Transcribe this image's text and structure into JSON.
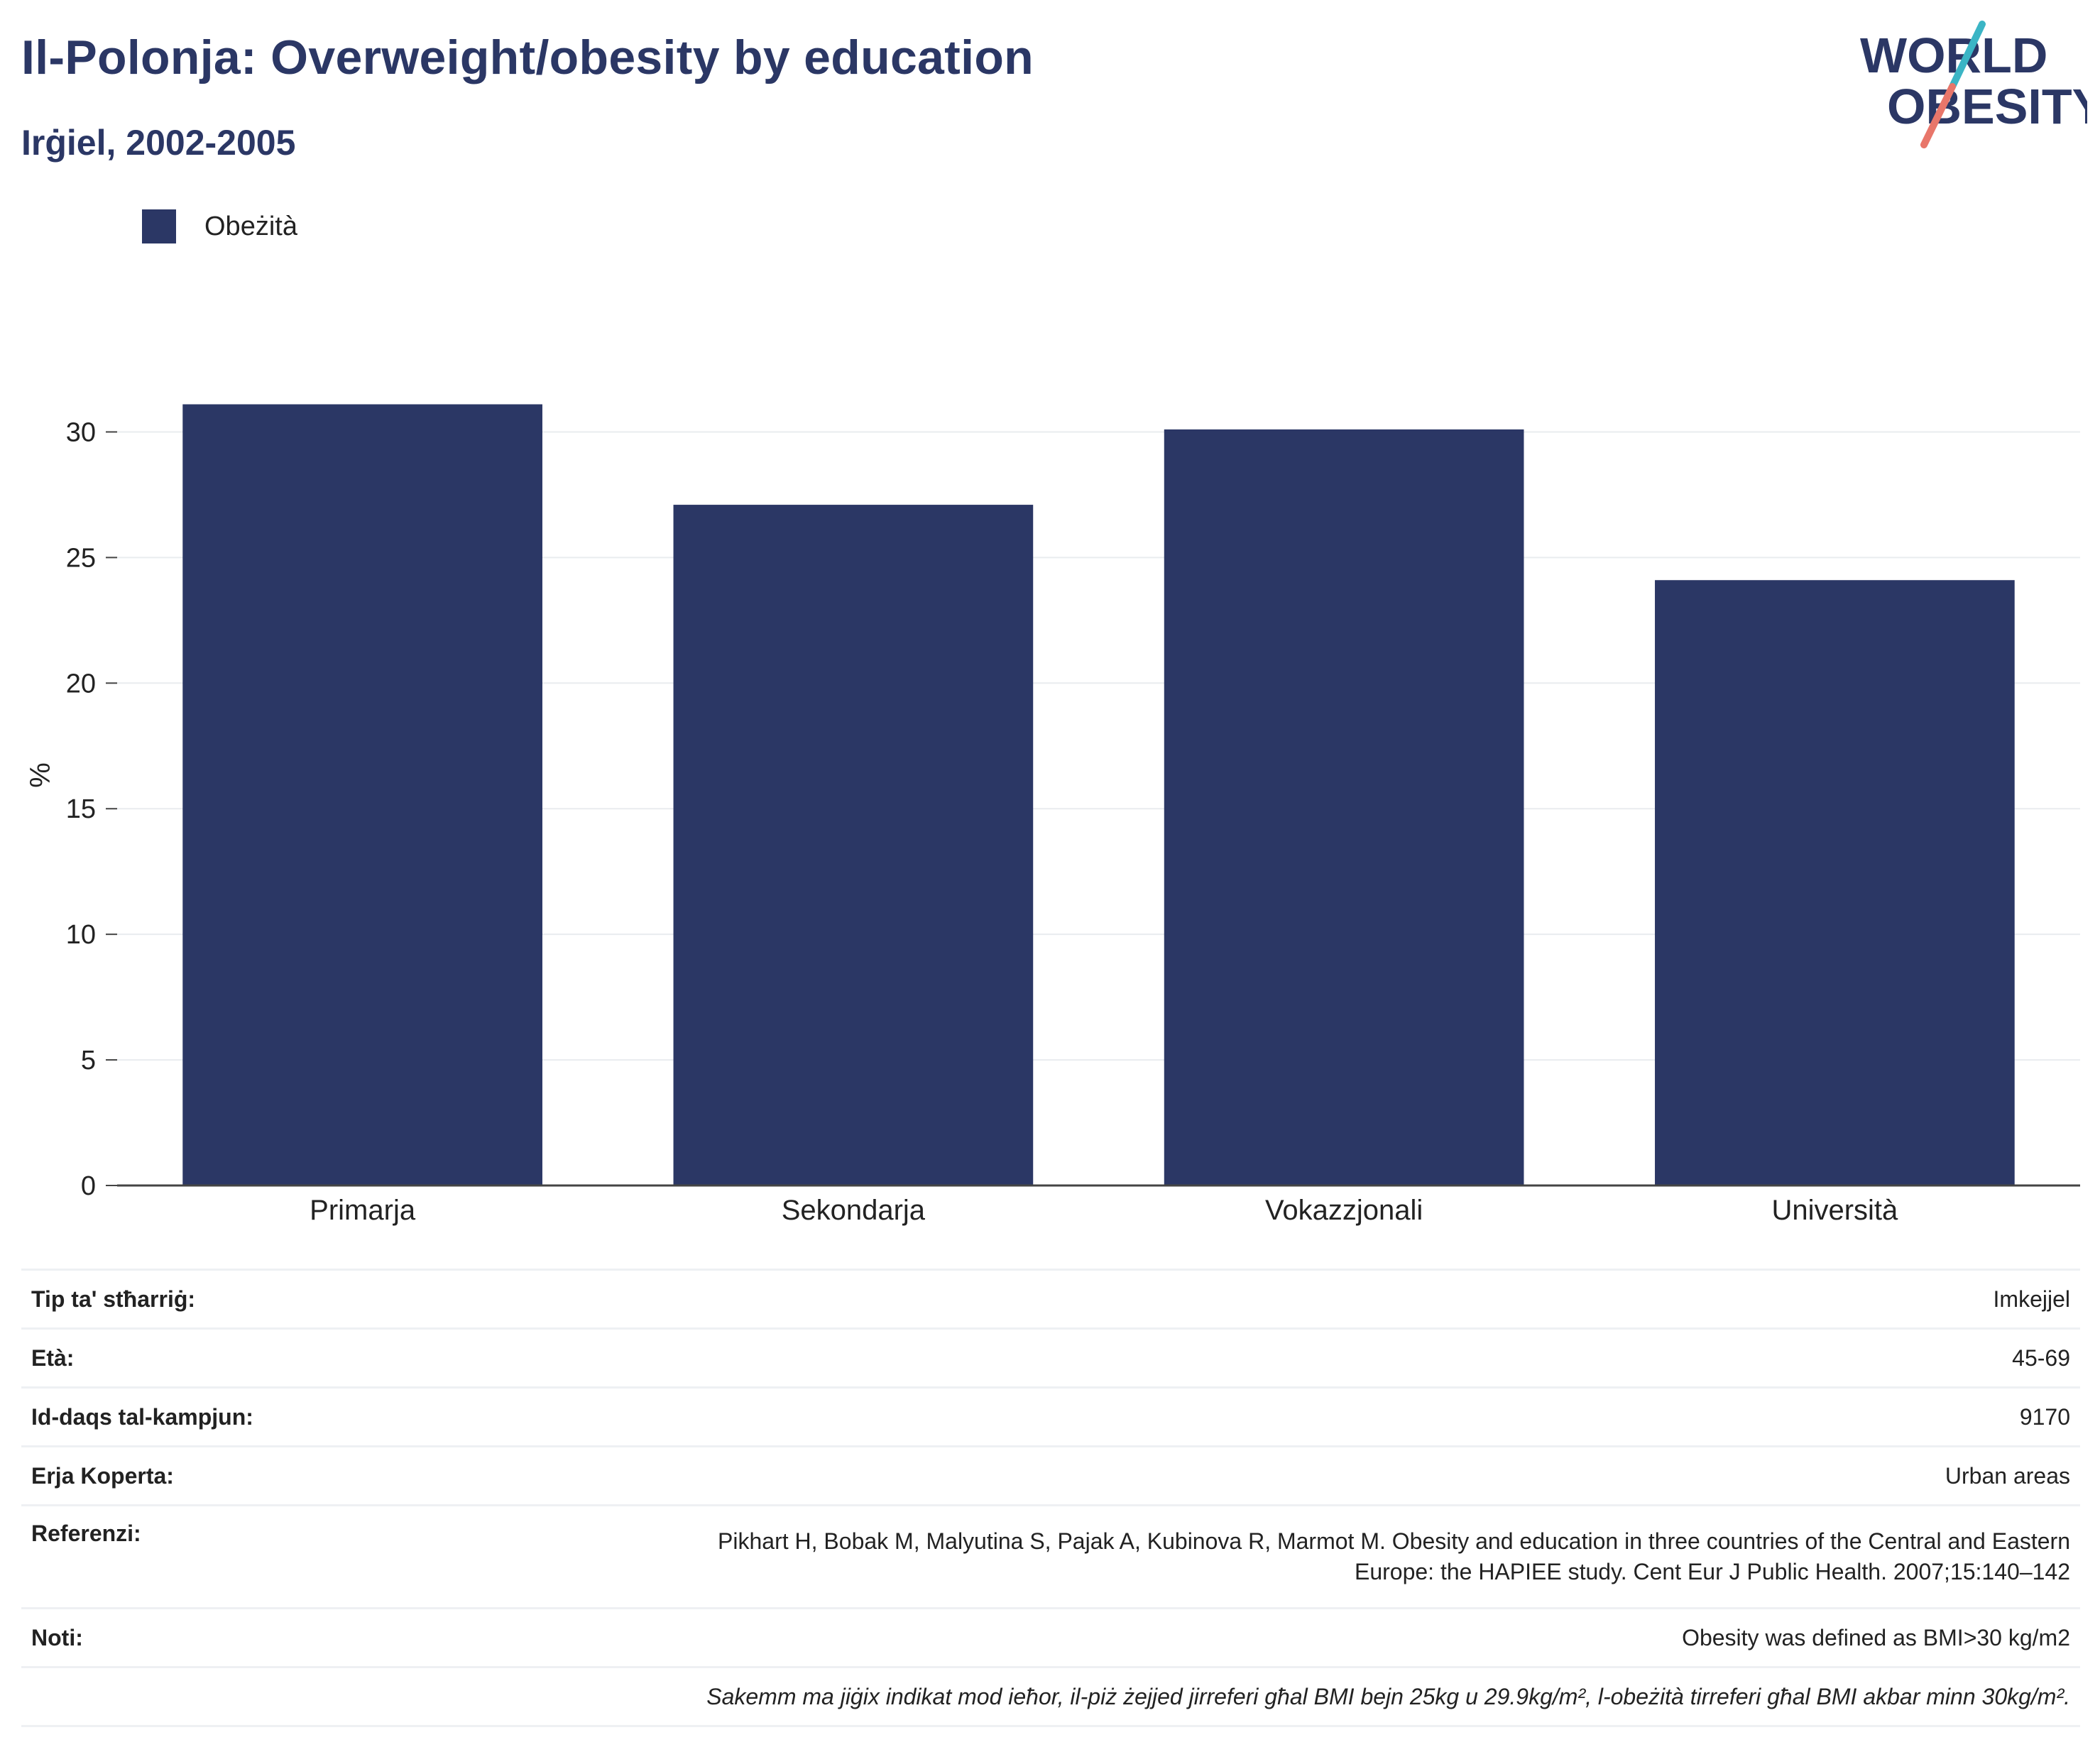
{
  "header": {
    "title": "Il-Polonja: Overweight/obesity by education",
    "subtitle": "Irġiel, 2002-2005"
  },
  "logo": {
    "line1": "WORLD",
    "line2": "OBESITY",
    "colors": {
      "navy": "#2b3765",
      "teal": "#3bb5c5",
      "coral": "#e8766a"
    }
  },
  "legend": {
    "label": "Obeżità",
    "color": "#2b3765"
  },
  "chart_data": {
    "type": "bar",
    "categories": [
      "Primarja",
      "Sekondarja",
      "Vokazzjonali",
      "Università"
    ],
    "series": [
      {
        "name": "Obeżità",
        "values": [
          31.1,
          27.1,
          30.1,
          24.1
        ],
        "color": "#2b3765"
      }
    ],
    "title": "Il-Polonja: Overweight/obesity by education",
    "subtitle": "Irġiel, 2002-2005",
    "xlabel": "",
    "ylabel": "%",
    "ylim": [
      0,
      32.5
    ],
    "yticks": [
      0,
      5,
      10,
      15,
      20,
      25,
      30
    ],
    "grid": true,
    "legend_position": "top-left"
  },
  "info": {
    "rows": [
      {
        "key": "Tip ta' stħarriġ:",
        "value": "Imkejjel"
      },
      {
        "key": "Età:",
        "value": "45-69"
      },
      {
        "key": "Id-daqs tal-kampjun:",
        "value": "9170"
      },
      {
        "key": "Erja Koperta:",
        "value": "Urban areas"
      },
      {
        "key": "Referenzi:",
        "value_line1": "Pikhart H, Bobak M, Malyutina S, Pajak A, Kubinova R, Marmot M. Obesity and education in three countries of the Central and Eastern",
        "value_line2": "Europe: the HAPIEE study. Cent Eur J Public Health. 2007;15:140–142"
      },
      {
        "key": "Noti:",
        "value": "Obesity was defined as BMI>30 kg/m2"
      }
    ],
    "footnote": "Sakemm ma jiġix indikat mod ieħor, il-piż żejjed jirreferi għal BMI bejn 25kg u 29.9kg/m², l-obeżità tirreferi għal BMI akbar minn 30kg/m²."
  }
}
